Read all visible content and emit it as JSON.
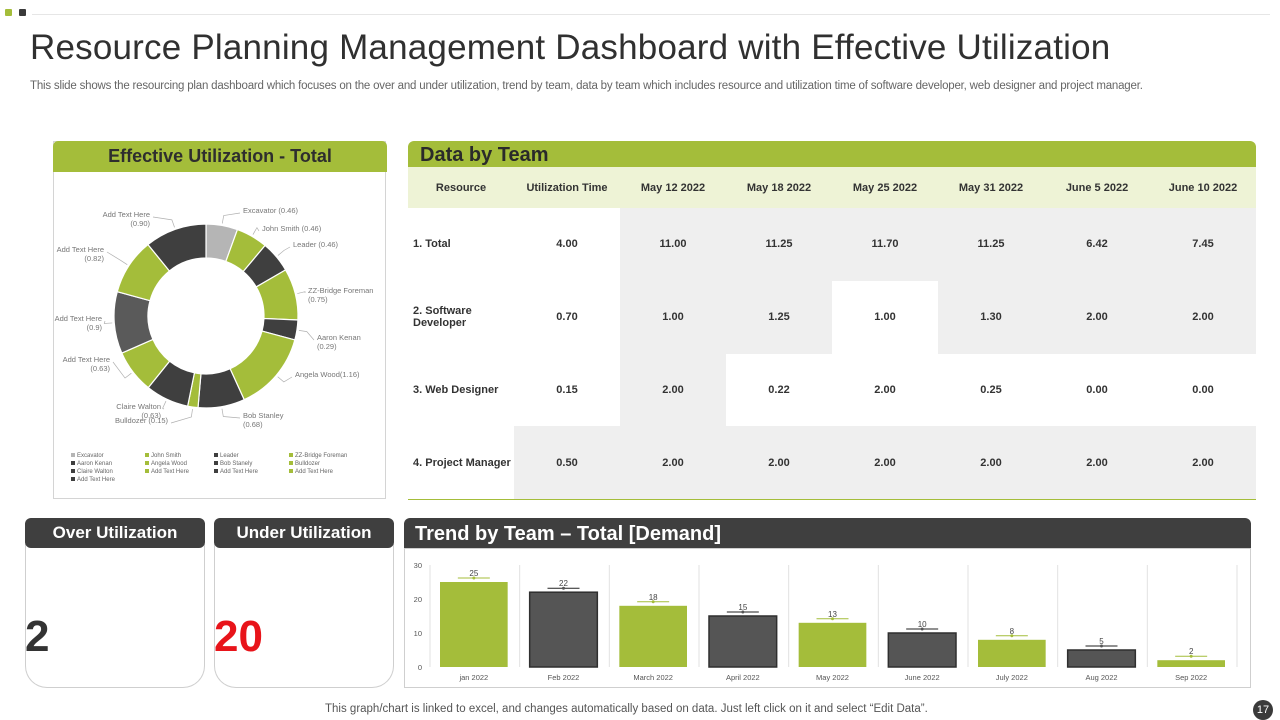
{
  "title": "Resource Planning Management Dashboard with Effective Utilization",
  "subtitle": "This slide shows the resourcing plan dashboard which focuses on the over and under utilization, trend by team, data by team which includes resource and utilization time of software developer, web designer and project manager.",
  "colors": {
    "accent": "#a4bd3a",
    "dark": "#3f3f3f",
    "gray": "#5a5a5a",
    "light_gray": "#b5b5b5",
    "highlight_red": "#e8141a"
  },
  "donut": {
    "title": "Effective Utilization - Total"
  },
  "table": {
    "title": "Data  by Team",
    "headers": [
      "Resource",
      "Utilization Time",
      "May 12 2022",
      "May 18 2022",
      "May 25 2022",
      "May 31 2022",
      "June 5 2022",
      "June 10 2022"
    ],
    "rows": [
      [
        "1. Total",
        "4.00",
        "11.00",
        "11.25",
        "11.70",
        "11.25",
        "6.42",
        "7.45"
      ],
      [
        "2. Software Developer",
        "0.70",
        "1.00",
        "1.25",
        "1.00",
        "1.30",
        "2.00",
        "2.00"
      ],
      [
        "3. Web Designer",
        "0.15",
        "2.00",
        "0.22",
        "2.00",
        "0.25",
        "0.00",
        "0.00"
      ],
      [
        "4. Project Manager",
        "0.50",
        "2.00",
        "2.00",
        "2.00",
        "2.00",
        "2.00",
        "2.00"
      ]
    ]
  },
  "over_utilization": {
    "label": "Over Utilization",
    "value": "2"
  },
  "under_utilization": {
    "label": "Under Utilization",
    "value": "20"
  },
  "trend": {
    "title": "Trend by Team – Total [Demand]"
  },
  "footer": "This graph/chart is linked to excel,  and changes automatically based on data. Just left click on it and select “Edit Data”.",
  "page_number": "17",
  "chart_data": [
    {
      "type": "pie",
      "title": "Effective Utilization - Total",
      "slices": [
        {
          "name": "Excavator",
          "value": 0.46,
          "label": "Excavator  (0.46)",
          "color": "#b5b5b5"
        },
        {
          "name": "John Smith",
          "value": 0.46,
          "label": "John Smith (0.46)",
          "color": "#a4bd3a"
        },
        {
          "name": "Leader",
          "value": 0.46,
          "label": "Leader  (0.46)",
          "color": "#3f3f3f"
        },
        {
          "name": "ZZ-Bridge Foreman",
          "value": 0.75,
          "label": "ZZ-Bridge Foreman  (0.75)",
          "color": "#a4bd3a"
        },
        {
          "name": "Aaron Kenan",
          "value": 0.29,
          "label": "Aaron  Kenan (0.29)",
          "color": "#3f3f3f"
        },
        {
          "name": "Angela Wood",
          "value": 1.16,
          "label": "Angela Wood(1.16)",
          "color": "#a4bd3a"
        },
        {
          "name": "Bob Stanley",
          "value": 0.68,
          "label": "Bob Stanley (0.68)",
          "color": "#3f3f3f"
        },
        {
          "name": "Bulldozer",
          "value": 0.15,
          "label": "Bulldozer (0.15)",
          "color": "#a4bd3a"
        },
        {
          "name": "Claire Walton",
          "value": 0.63,
          "label": "Claire Walton (0.63)",
          "color": "#3f3f3f"
        },
        {
          "name": "Add Text Here",
          "value": 0.63,
          "label": "Add Text Here (0.63)",
          "color": "#a4bd3a"
        },
        {
          "name": "Add Text Here",
          "value": 0.9,
          "label": "Add Text Here (0.9)",
          "color": "#5a5a5a"
        },
        {
          "name": "Add Text Here",
          "value": 0.82,
          "label": "Add Text Here (0.82)",
          "color": "#a4bd3a"
        },
        {
          "name": "Add Text Here",
          "value": 0.9,
          "label": "Add Text Here (0.90)",
          "color": "#3f3f3f"
        }
      ],
      "legend": {
        "placement": "bottom",
        "entries": [
          {
            "name": "Excavator",
            "color": "#b5b5b5"
          },
          {
            "name": "John Smith",
            "color": "#a4bd3a"
          },
          {
            "name": "Leader",
            "color": "#3f3f3f"
          },
          {
            "name": "ZZ-Bridge Foreman",
            "color": "#a4bd3a"
          },
          {
            "name": "Aaron Kenan",
            "color": "#3f3f3f"
          },
          {
            "name": "Angela Wood",
            "color": "#a4bd3a"
          },
          {
            "name": "Bob Stanely",
            "color": "#3f3f3f"
          },
          {
            "name": "Bulldozer",
            "color": "#a4bd3a"
          },
          {
            "name": "Claire Walton",
            "color": "#3f3f3f"
          },
          {
            "name": "Add Text Here",
            "color": "#a4bd3a"
          },
          {
            "name": "Add Text Here",
            "color": "#3f3f3f"
          },
          {
            "name": "Add Text Here",
            "color": "#a4bd3a"
          },
          {
            "name": "Add Text Here",
            "color": "#3f3f3f"
          }
        ]
      }
    },
    {
      "type": "bar",
      "title": "Trend by Team – Total [Demand]",
      "categories": [
        "jan 2022",
        "Feb 2022",
        "March 2022",
        "April 2022",
        "May 2022",
        "June 2022",
        "July 2022",
        "Aug 2022",
        "Sep 2022"
      ],
      "values": [
        25,
        22,
        18,
        15,
        13,
        10,
        8,
        5,
        2
      ],
      "colors": [
        "#a4bd3a",
        "#555555",
        "#a4bd3a",
        "#555555",
        "#a4bd3a",
        "#555555",
        "#a4bd3a",
        "#555555",
        "#a4bd3a"
      ],
      "ylim": [
        0,
        30
      ],
      "yticks": [
        0,
        10,
        20,
        30
      ],
      "grid": false
    }
  ]
}
